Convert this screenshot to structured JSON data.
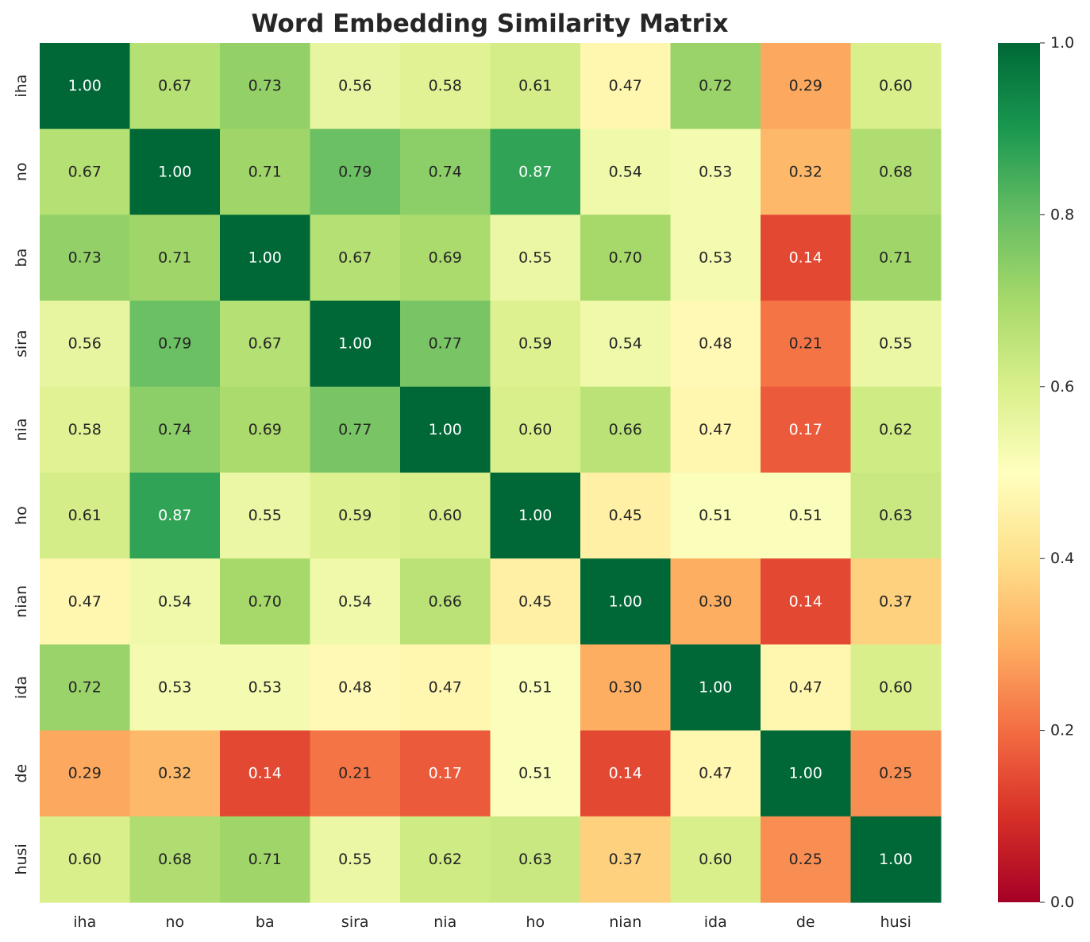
{
  "chart_data": {
    "type": "heatmap",
    "title": "Word Embedding Similarity Matrix",
    "xlabel": "",
    "ylabel": "",
    "labels": [
      "iha",
      "no",
      "ba",
      "sira",
      "nia",
      "ho",
      "nian",
      "ida",
      "de",
      "husi"
    ],
    "values": [
      [
        1.0,
        0.67,
        0.73,
        0.56,
        0.58,
        0.61,
        0.47,
        0.72,
        0.29,
        0.6
      ],
      [
        0.67,
        1.0,
        0.71,
        0.79,
        0.74,
        0.87,
        0.54,
        0.53,
        0.32,
        0.68
      ],
      [
        0.73,
        0.71,
        1.0,
        0.67,
        0.69,
        0.55,
        0.7,
        0.53,
        0.14,
        0.71
      ],
      [
        0.56,
        0.79,
        0.67,
        1.0,
        0.77,
        0.59,
        0.54,
        0.48,
        0.21,
        0.55
      ],
      [
        0.58,
        0.74,
        0.69,
        0.77,
        1.0,
        0.6,
        0.66,
        0.47,
        0.17,
        0.62
      ],
      [
        0.61,
        0.87,
        0.55,
        0.59,
        0.6,
        1.0,
        0.45,
        0.51,
        0.51,
        0.63
      ],
      [
        0.47,
        0.54,
        0.7,
        0.54,
        0.66,
        0.45,
        1.0,
        0.3,
        0.14,
        0.37
      ],
      [
        0.72,
        0.53,
        0.53,
        0.48,
        0.47,
        0.51,
        0.3,
        1.0,
        0.47,
        0.6
      ],
      [
        0.29,
        0.32,
        0.14,
        0.21,
        0.17,
        0.51,
        0.14,
        0.47,
        1.0,
        0.25
      ],
      [
        0.6,
        0.68,
        0.71,
        0.55,
        0.62,
        0.63,
        0.37,
        0.6,
        0.25,
        1.0
      ]
    ],
    "value_format": "2 decimals",
    "colormap": "RdYlGn",
    "vmin": 0.0,
    "vmax": 1.0,
    "colorbar_ticks": [
      "0.0",
      "0.2",
      "0.4",
      "0.6",
      "0.8",
      "1.0"
    ],
    "colorbar_tick_values": [
      0.0,
      0.2,
      0.4,
      0.6,
      0.8,
      1.0
    ],
    "colorbar_position": "right",
    "grid": false
  }
}
